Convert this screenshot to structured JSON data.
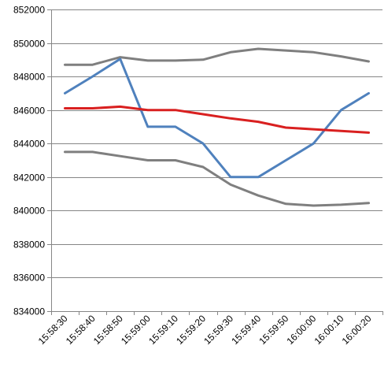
{
  "chart_data": {
    "type": "line",
    "title": "",
    "xlabel": "",
    "ylabel": "",
    "categories": [
      "15:58:30",
      "15:58:40",
      "15:58:50",
      "15:59:00",
      "15:59:10",
      "15:59:20",
      "15:59:30",
      "15:59:40",
      "15:59:50",
      "16:00:00",
      "16:00:10",
      "16:00:20"
    ],
    "ylim": [
      834000,
      852000
    ],
    "ytick_step": 2000,
    "yticks": [
      "834000",
      "836000",
      "838000",
      "840000",
      "842000",
      "844000",
      "846000",
      "848000",
      "850000",
      "852000"
    ],
    "grid": true,
    "legend": "none",
    "series": [
      {
        "color": "#7f7f7f",
        "values": [
          848700,
          848700,
          849150,
          848950,
          848950,
          849000,
          849450,
          849650,
          849550,
          849450,
          849200,
          848900
        ]
      },
      {
        "color": "#4f81bd",
        "values": [
          847000,
          848000,
          849050,
          845000,
          845000,
          844000,
          842000,
          842000,
          843000,
          844000,
          846000,
          847000
        ]
      },
      {
        "color": "#d92020",
        "values": [
          846100,
          846100,
          846200,
          846000,
          846000,
          845750,
          845500,
          845300,
          844950,
          844850,
          844750,
          844650
        ]
      },
      {
        "color": "#7f7f7f",
        "values": [
          843500,
          843500,
          843250,
          843000,
          843000,
          842600,
          841550,
          840900,
          840400,
          840300,
          840350,
          840450
        ]
      }
    ]
  }
}
